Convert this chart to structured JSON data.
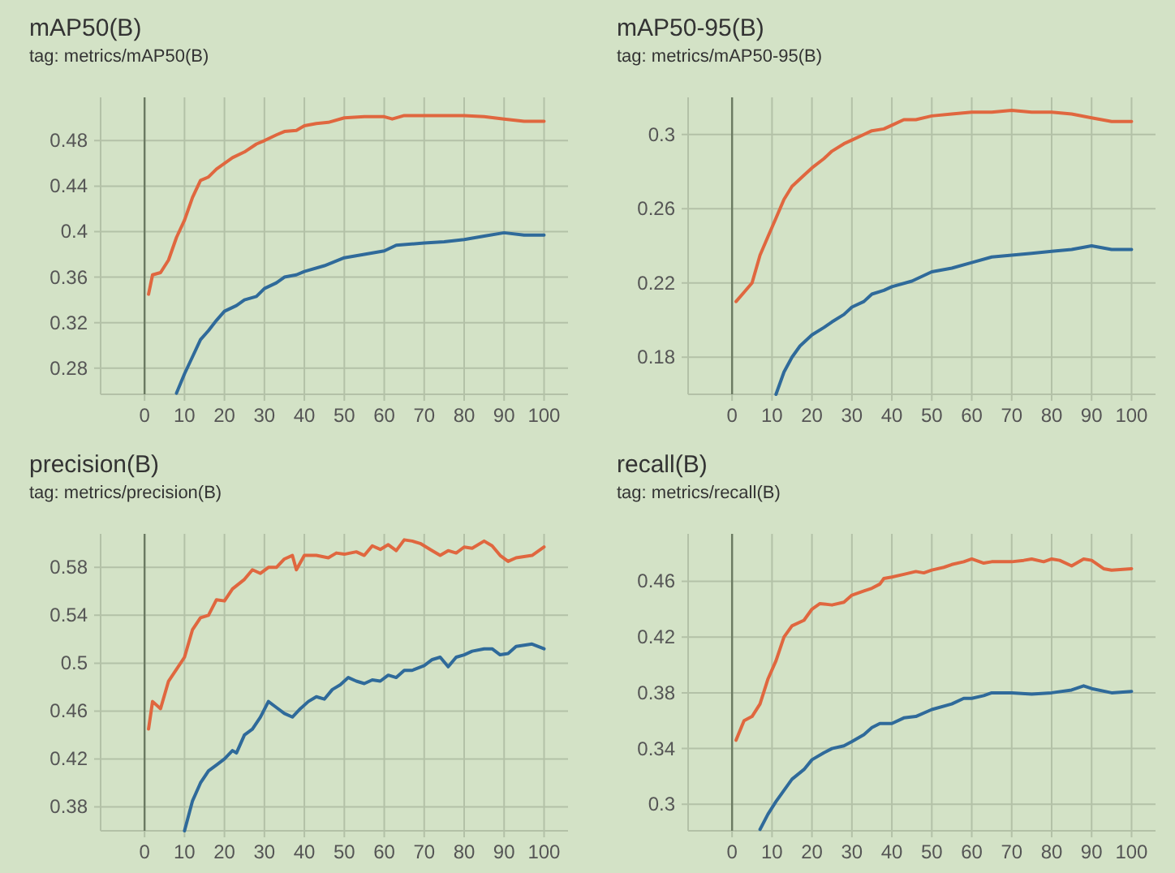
{
  "chart_data": [
    {
      "type": "line",
      "title": "mAP50(B)",
      "subtitle": "tag: metrics/mAP50(B)",
      "xlim": [
        -11,
        106
      ],
      "ylim": [
        0.257,
        0.518
      ],
      "xticks": [
        0,
        10,
        20,
        30,
        40,
        50,
        60,
        70,
        80,
        90,
        100
      ],
      "yticks": [
        0.28,
        0.32,
        0.36,
        0.4,
        0.44,
        0.48
      ],
      "grid": true,
      "ref_lines": [
        {
          "axis": "x",
          "value": 0,
          "color": "#6b7a62"
        }
      ],
      "series": [
        {
          "color": "#e0673f",
          "x": [
            1,
            2,
            4,
            6,
            8,
            10,
            12,
            14,
            16,
            18,
            20,
            22,
            25,
            28,
            30,
            33,
            35,
            38,
            40,
            43,
            46,
            50,
            55,
            60,
            62,
            65,
            70,
            75,
            80,
            85,
            90,
            95,
            100
          ],
          "values": [
            0.345,
            0.362,
            0.364,
            0.375,
            0.395,
            0.41,
            0.43,
            0.445,
            0.448,
            0.455,
            0.46,
            0.465,
            0.47,
            0.477,
            0.48,
            0.485,
            0.488,
            0.489,
            0.493,
            0.495,
            0.496,
            0.5,
            0.501,
            0.501,
            0.499,
            0.502,
            0.502,
            0.502,
            0.502,
            0.501,
            0.499,
            0.497,
            0.497
          ]
        },
        {
          "color": "#2f6a9a",
          "x": [
            8,
            10,
            12,
            14,
            16,
            18,
            20,
            23,
            25,
            28,
            30,
            33,
            35,
            38,
            40,
            45,
            50,
            55,
            60,
            63,
            70,
            75,
            80,
            85,
            90,
            95,
            100
          ],
          "values": [
            0.258,
            0.275,
            0.29,
            0.305,
            0.313,
            0.322,
            0.33,
            0.335,
            0.34,
            0.343,
            0.35,
            0.355,
            0.36,
            0.362,
            0.365,
            0.37,
            0.377,
            0.38,
            0.383,
            0.388,
            0.39,
            0.391,
            0.393,
            0.396,
            0.399,
            0.397,
            0.397
          ]
        }
      ]
    },
    {
      "type": "line",
      "title": "mAP50-95(B)",
      "subtitle": "tag: metrics/mAP50-95(B)",
      "xlim": [
        -11,
        106
      ],
      "ylim": [
        0.16,
        0.32
      ],
      "xticks": [
        0,
        10,
        20,
        30,
        40,
        50,
        60,
        70,
        80,
        90,
        100
      ],
      "yticks": [
        0.18,
        0.22,
        0.26,
        0.3
      ],
      "grid": true,
      "ref_lines": [
        {
          "axis": "x",
          "value": 0,
          "color": "#6b7a62"
        }
      ],
      "series": [
        {
          "color": "#e0673f",
          "x": [
            1,
            3,
            5,
            7,
            9,
            11,
            13,
            15,
            18,
            20,
            23,
            25,
            28,
            30,
            33,
            35,
            38,
            40,
            43,
            46,
            50,
            55,
            60,
            65,
            70,
            75,
            80,
            85,
            90,
            95,
            100
          ],
          "values": [
            0.21,
            0.215,
            0.22,
            0.235,
            0.245,
            0.255,
            0.265,
            0.272,
            0.278,
            0.282,
            0.287,
            0.291,
            0.295,
            0.297,
            0.3,
            0.302,
            0.303,
            0.305,
            0.308,
            0.308,
            0.31,
            0.311,
            0.312,
            0.312,
            0.313,
            0.312,
            0.312,
            0.311,
            0.309,
            0.307,
            0.307
          ]
        },
        {
          "color": "#2f6a9a",
          "x": [
            11,
            13,
            15,
            17,
            20,
            23,
            25,
            28,
            30,
            33,
            35,
            38,
            40,
            45,
            50,
            55,
            60,
            65,
            70,
            75,
            80,
            85,
            90,
            95,
            100
          ],
          "values": [
            0.16,
            0.172,
            0.18,
            0.186,
            0.192,
            0.196,
            0.199,
            0.203,
            0.207,
            0.21,
            0.214,
            0.216,
            0.218,
            0.221,
            0.226,
            0.228,
            0.231,
            0.234,
            0.235,
            0.236,
            0.237,
            0.238,
            0.24,
            0.238,
            0.238
          ]
        }
      ]
    },
    {
      "type": "line",
      "title": "precision(B)",
      "subtitle": "tag: metrics/precision(B)",
      "xlim": [
        -11,
        106
      ],
      "ylim": [
        0.36,
        0.608
      ],
      "xticks": [
        0,
        10,
        20,
        30,
        40,
        50,
        60,
        70,
        80,
        90,
        100
      ],
      "yticks": [
        0.38,
        0.42,
        0.46,
        0.5,
        0.54,
        0.58
      ],
      "grid": true,
      "ref_lines": [
        {
          "axis": "x",
          "value": 0,
          "color": "#6b7a62"
        }
      ],
      "series": [
        {
          "color": "#e0673f",
          "x": [
            1,
            2,
            4,
            6,
            8,
            10,
            12,
            14,
            16,
            18,
            20,
            22,
            25,
            27,
            29,
            31,
            33,
            35,
            37,
            38,
            40,
            43,
            46,
            48,
            50,
            53,
            55,
            57,
            59,
            61,
            63,
            65,
            67,
            69,
            72,
            74,
            76,
            78,
            80,
            82,
            85,
            87,
            89,
            91,
            93,
            95,
            97,
            100
          ],
          "values": [
            0.445,
            0.468,
            0.462,
            0.485,
            0.495,
            0.505,
            0.528,
            0.538,
            0.54,
            0.553,
            0.552,
            0.562,
            0.57,
            0.578,
            0.575,
            0.58,
            0.58,
            0.587,
            0.59,
            0.578,
            0.59,
            0.59,
            0.588,
            0.592,
            0.591,
            0.593,
            0.59,
            0.598,
            0.595,
            0.599,
            0.594,
            0.603,
            0.602,
            0.6,
            0.594,
            0.59,
            0.594,
            0.592,
            0.597,
            0.596,
            0.602,
            0.598,
            0.59,
            0.585,
            0.588,
            0.589,
            0.59,
            0.597
          ]
        },
        {
          "color": "#2f6a9a",
          "x": [
            10,
            12,
            14,
            16,
            18,
            20,
            22,
            23,
            25,
            27,
            29,
            31,
            33,
            35,
            37,
            39,
            41,
            43,
            45,
            47,
            49,
            51,
            53,
            55,
            57,
            59,
            61,
            63,
            65,
            67,
            70,
            72,
            74,
            76,
            78,
            80,
            82,
            85,
            87,
            89,
            91,
            93,
            95,
            97,
            100
          ],
          "values": [
            0.36,
            0.385,
            0.4,
            0.41,
            0.415,
            0.42,
            0.427,
            0.425,
            0.44,
            0.445,
            0.455,
            0.468,
            0.463,
            0.458,
            0.455,
            0.462,
            0.468,
            0.472,
            0.47,
            0.478,
            0.482,
            0.488,
            0.485,
            0.483,
            0.486,
            0.485,
            0.49,
            0.488,
            0.494,
            0.494,
            0.498,
            0.503,
            0.505,
            0.497,
            0.505,
            0.507,
            0.51,
            0.512,
            0.512,
            0.507,
            0.508,
            0.514,
            0.515,
            0.516,
            0.512
          ]
        }
      ]
    },
    {
      "type": "line",
      "title": "recall(B)",
      "subtitle": "tag: metrics/recall(B)",
      "xlim": [
        -11,
        106
      ],
      "ylim": [
        0.281,
        0.494
      ],
      "xticks": [
        0,
        10,
        20,
        30,
        40,
        50,
        60,
        70,
        80,
        90,
        100
      ],
      "yticks": [
        0.3,
        0.34,
        0.38,
        0.42,
        0.46
      ],
      "grid": true,
      "ref_lines": [
        {
          "axis": "x",
          "value": 0,
          "color": "#6b7a62"
        }
      ],
      "series": [
        {
          "color": "#e0673f",
          "x": [
            1,
            3,
            5,
            7,
            9,
            11,
            13,
            15,
            18,
            20,
            22,
            25,
            28,
            30,
            33,
            35,
            37,
            38,
            40,
            43,
            46,
            48,
            50,
            53,
            55,
            58,
            60,
            63,
            65,
            70,
            73,
            75,
            78,
            80,
            82,
            85,
            88,
            90,
            93,
            95,
            100
          ],
          "values": [
            0.346,
            0.36,
            0.363,
            0.372,
            0.39,
            0.403,
            0.42,
            0.428,
            0.432,
            0.44,
            0.444,
            0.443,
            0.445,
            0.45,
            0.453,
            0.455,
            0.458,
            0.462,
            0.463,
            0.465,
            0.467,
            0.466,
            0.468,
            0.47,
            0.472,
            0.474,
            0.476,
            0.473,
            0.474,
            0.474,
            0.475,
            0.476,
            0.474,
            0.476,
            0.475,
            0.471,
            0.476,
            0.475,
            0.469,
            0.468,
            0.469
          ]
        },
        {
          "color": "#2f6a9a",
          "x": [
            7,
            9,
            11,
            13,
            15,
            18,
            20,
            23,
            25,
            28,
            30,
            33,
            35,
            37,
            40,
            43,
            46,
            50,
            55,
            58,
            60,
            63,
            65,
            70,
            75,
            80,
            85,
            88,
            90,
            95,
            100
          ],
          "values": [
            0.282,
            0.293,
            0.302,
            0.31,
            0.318,
            0.325,
            0.332,
            0.337,
            0.34,
            0.342,
            0.345,
            0.35,
            0.355,
            0.358,
            0.358,
            0.362,
            0.363,
            0.368,
            0.372,
            0.376,
            0.376,
            0.378,
            0.38,
            0.38,
            0.379,
            0.38,
            0.382,
            0.385,
            0.383,
            0.38,
            0.381
          ]
        }
      ]
    }
  ]
}
